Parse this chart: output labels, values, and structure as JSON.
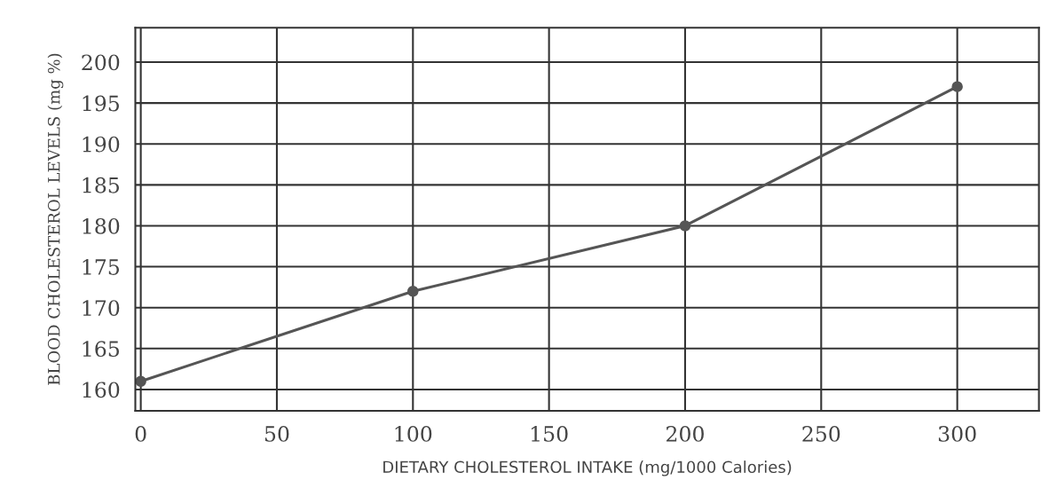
{
  "chart_data": {
    "type": "line",
    "xlabel": "DIETARY CHOLESTEROL INTAKE (mg/1000 Calories)",
    "ylabel": "BLOOD CHOLESTEROL LEVELS (mg %)",
    "x": [
      0,
      100,
      200,
      300
    ],
    "series": [
      {
        "color": "#555555",
        "values": [
          161,
          172,
          180,
          197
        ]
      }
    ],
    "xlim": [
      -2,
      330
    ],
    "xticks": [
      0,
      50,
      100,
      150,
      200,
      250,
      300
    ],
    "ylim": [
      157.4,
      204.2
    ],
    "yticks": [
      160,
      165,
      170,
      175,
      180,
      185,
      190,
      195,
      200
    ],
    "grid": true,
    "marker": "circle",
    "line_style": "solid"
  }
}
